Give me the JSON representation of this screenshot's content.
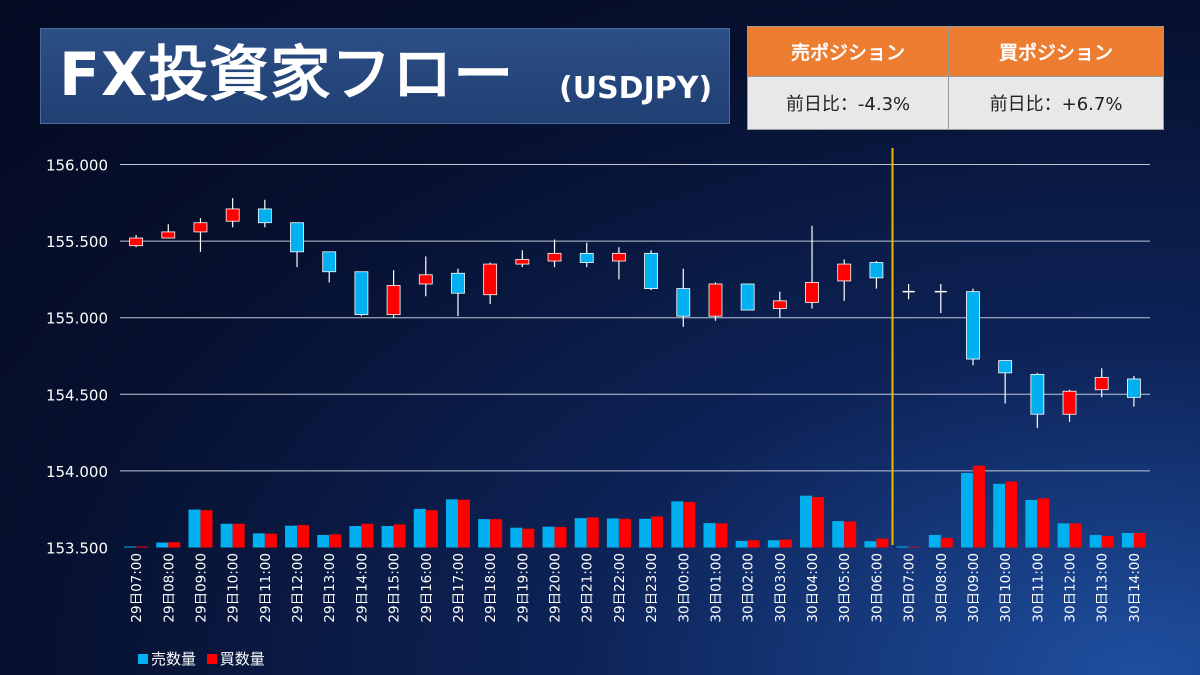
{
  "header": {
    "title": "FX投資家フロー",
    "subtitle": "(USDJPY)"
  },
  "positions": {
    "sell_label": "売ポジション",
    "sell_change": "前日比：-4.3%",
    "buy_label": "買ポジション",
    "buy_change": "前日比：+6.7%"
  },
  "legend": {
    "sell": "売数量",
    "buy": "買数量"
  },
  "colors": {
    "sell": "#00b0f0",
    "buy": "#ff0000",
    "divider": "#f0b800",
    "header_orange": "#ed7d31"
  },
  "chart_data": {
    "type": "candlestick",
    "ylim": [
      153.5,
      156.0
    ],
    "yticks": [
      "153.500",
      "154.000",
      "154.500",
      "155.000",
      "155.500",
      "156.000"
    ],
    "grid": true,
    "divider_after": "30日06:00",
    "categories": [
      "29日07:00",
      "29日08:00",
      "29日09:00",
      "29日10:00",
      "29日11:00",
      "29日12:00",
      "29日13:00",
      "29日14:00",
      "29日15:00",
      "29日16:00",
      "29日17:00",
      "29日18:00",
      "29日19:00",
      "29日20:00",
      "29日21:00",
      "29日22:00",
      "29日23:00",
      "30日00:00",
      "30日01:00",
      "30日02:00",
      "30日03:00",
      "30日04:00",
      "30日05:00",
      "30日06:00",
      "30日07:00",
      "30日08:00",
      "30日09:00",
      "30日10:00",
      "30日11:00",
      "30日12:00",
      "30日13:00",
      "30日14:00"
    ],
    "ohlc": [
      [
        155.47,
        155.54,
        155.46,
        155.52
      ],
      [
        155.52,
        155.61,
        155.52,
        155.56
      ],
      [
        155.56,
        155.65,
        155.43,
        155.62
      ],
      [
        155.63,
        155.78,
        155.59,
        155.71
      ],
      [
        155.71,
        155.77,
        155.59,
        155.62
      ],
      [
        155.62,
        155.62,
        155.33,
        155.43
      ],
      [
        155.43,
        155.43,
        155.23,
        155.3
      ],
      [
        155.3,
        155.3,
        155.01,
        155.02
      ],
      [
        155.02,
        155.31,
        155.0,
        155.21
      ],
      [
        155.22,
        155.4,
        155.14,
        155.28
      ],
      [
        155.29,
        155.32,
        155.01,
        155.16
      ],
      [
        155.15,
        155.36,
        155.09,
        155.35
      ],
      [
        155.35,
        155.44,
        155.33,
        155.38
      ],
      [
        155.37,
        155.51,
        155.33,
        155.42
      ],
      [
        155.42,
        155.49,
        155.33,
        155.36
      ],
      [
        155.37,
        155.46,
        155.25,
        155.42
      ],
      [
        155.42,
        155.44,
        155.18,
        155.19
      ],
      [
        155.19,
        155.32,
        154.94,
        155.01
      ],
      [
        155.01,
        155.23,
        154.98,
        155.22
      ],
      [
        155.22,
        155.22,
        155.05,
        155.05
      ],
      [
        155.06,
        155.17,
        155.0,
        155.11
      ],
      [
        155.1,
        155.6,
        155.06,
        155.23
      ],
      [
        155.24,
        155.38,
        155.11,
        155.35
      ],
      [
        155.36,
        155.37,
        155.19,
        155.26
      ],
      [
        155.17,
        155.22,
        155.12,
        155.17
      ],
      [
        155.17,
        155.22,
        155.03,
        155.17
      ],
      [
        155.17,
        155.19,
        154.69,
        154.73
      ],
      [
        154.72,
        154.72,
        154.44,
        154.64
      ],
      [
        154.63,
        154.64,
        154.28,
        154.37
      ],
      [
        154.37,
        154.53,
        154.32,
        154.52
      ],
      [
        154.53,
        154.67,
        154.48,
        154.61
      ],
      [
        154.6,
        154.62,
        154.42,
        154.48
      ]
    ],
    "volume_sell": [
      3,
      15,
      115,
      72,
      43,
      66,
      38,
      65,
      65,
      117,
      146,
      86,
      60,
      63,
      89,
      88,
      87,
      140,
      74,
      20,
      22,
      157,
      80,
      19,
      3,
      38,
      226,
      193,
      144,
      73,
      38,
      44
    ],
    "volume_buy": [
      3,
      16,
      113,
      72,
      42,
      68,
      40,
      72,
      70,
      113,
      145,
      86,
      57,
      62,
      91,
      87,
      94,
      138,
      73,
      22,
      24,
      153,
      79,
      27,
      2,
      29,
      248,
      200,
      149,
      73,
      35,
      44
    ]
  }
}
